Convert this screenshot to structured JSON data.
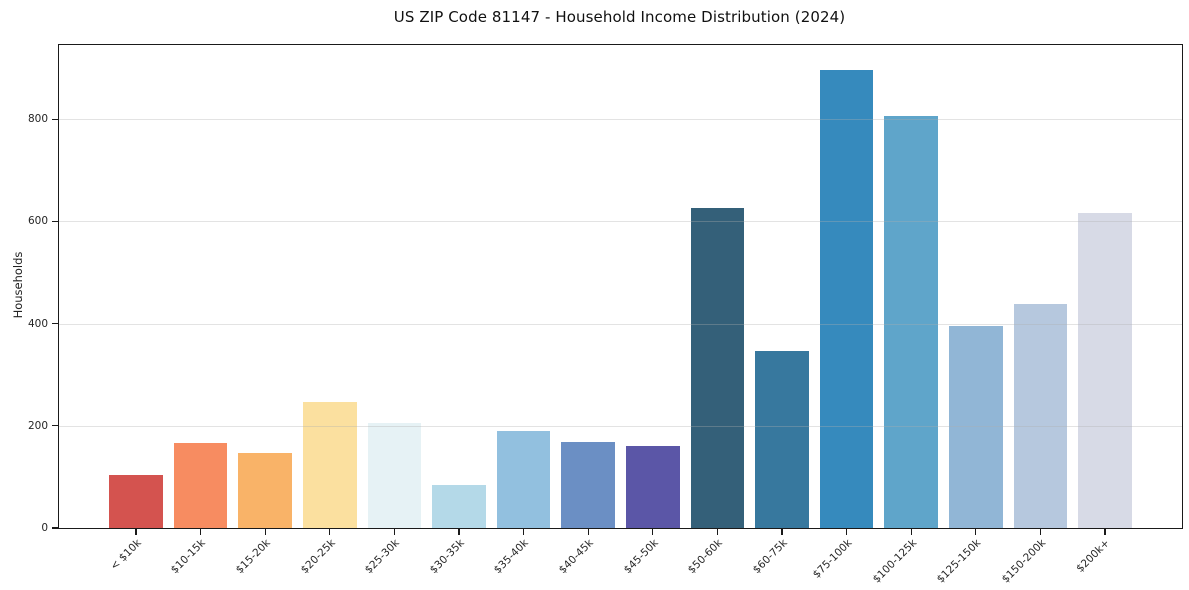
{
  "chart_data": {
    "type": "bar",
    "title": "US ZIP Code 81147 - Household Income Distribution (2024)",
    "xlabel": "",
    "ylabel": "Households",
    "categories": [
      "< $10k",
      "$10-15k",
      "$15-20k",
      "$20-25k",
      "$25-30k",
      "$30-35k",
      "$35-40k",
      "$40-45k",
      "$45-50k",
      "$50-60k",
      "$60-75k",
      "$75-100k",
      "$100-125k",
      "$125-150k",
      "$150-200k",
      "$200k+"
    ],
    "values": [
      103,
      166,
      147,
      246,
      205,
      85,
      190,
      169,
      161,
      627,
      347,
      896,
      807,
      396,
      438,
      616
    ],
    "bar_colors": [
      "#d4534f",
      "#f78c61",
      "#f9b368",
      "#fbe09f",
      "#e6f2f5",
      "#b4d9e8",
      "#92c0df",
      "#6b8fc4",
      "#5b56a7",
      "#346079",
      "#37789e",
      "#368abd",
      "#5fa5ca",
      "#91b6d6",
      "#b6c8de",
      "#d7dae6"
    ],
    "yticks": [
      0,
      200,
      400,
      600,
      800
    ],
    "ylim": [
      0,
      945
    ],
    "grid": "horizontal-above-bars",
    "legend": "none",
    "xtick_rotation": 45,
    "spine_color": "#1a1a1a",
    "grid_color": "#b0b0b0"
  }
}
